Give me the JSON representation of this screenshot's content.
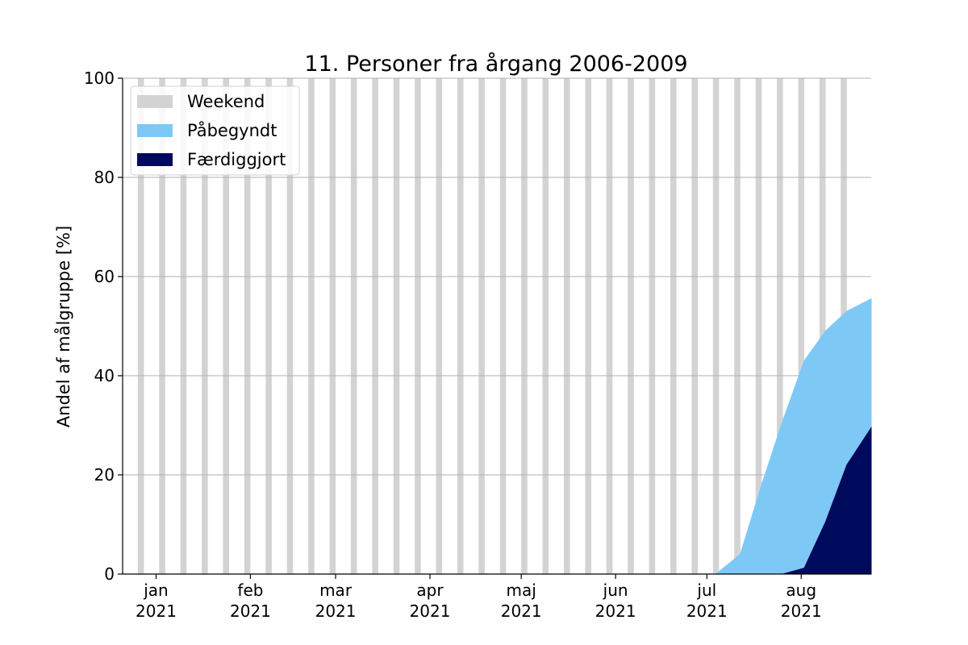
{
  "chart_data": {
    "type": "area",
    "title": "11. Personer fra årgang 2006-2009",
    "ylabel": "Andel af målgruppe [%]",
    "xlabel": "",
    "ylim": [
      0,
      100
    ],
    "xlim": [
      "2020-12-21",
      "2021-08-24"
    ],
    "grid": "horizontal",
    "legend_position": "top-left",
    "y_ticks": [
      0,
      20,
      40,
      60,
      80,
      100
    ],
    "x_ticks": [
      {
        "date": "2021-01-01",
        "label": "jan",
        "year": "2021"
      },
      {
        "date": "2021-02-01",
        "label": "feb",
        "year": "2021"
      },
      {
        "date": "2021-03-01",
        "label": "mar",
        "year": "2021"
      },
      {
        "date": "2021-04-01",
        "label": "apr",
        "year": "2021"
      },
      {
        "date": "2021-05-01",
        "label": "maj",
        "year": "2021"
      },
      {
        "date": "2021-06-01",
        "label": "jun",
        "year": "2021"
      },
      {
        "date": "2021-07-01",
        "label": "jul",
        "year": "2021"
      },
      {
        "date": "2021-08-01",
        "label": "aug",
        "year": "2021"
      }
    ],
    "weekend": {
      "name": "Weekend",
      "color": "#d3d3d3",
      "dates": [
        "2020-12-26",
        "2021-01-02",
        "2021-01-09",
        "2021-01-16",
        "2021-01-23",
        "2021-01-30",
        "2021-02-06",
        "2021-02-13",
        "2021-02-20",
        "2021-02-27",
        "2021-03-06",
        "2021-03-13",
        "2021-03-20",
        "2021-03-27",
        "2021-04-03",
        "2021-04-10",
        "2021-04-17",
        "2021-04-24",
        "2021-05-01",
        "2021-05-08",
        "2021-05-15",
        "2021-05-22",
        "2021-05-29",
        "2021-06-05",
        "2021-06-12",
        "2021-06-19",
        "2021-06-26",
        "2021-07-03",
        "2021-07-10",
        "2021-07-17",
        "2021-07-24",
        "2021-07-31",
        "2021-08-07",
        "2021-08-14"
      ]
    },
    "series": [
      {
        "name": "Påbegyndt",
        "color": "#7ec8f6",
        "x": [
          "2020-12-21",
          "2021-07-04",
          "2021-07-12",
          "2021-07-19",
          "2021-07-26",
          "2021-08-02",
          "2021-08-09",
          "2021-08-16",
          "2021-08-24"
        ],
        "values": [
          0,
          0,
          4,
          18,
          31,
          43,
          49,
          53,
          55.5
        ]
      },
      {
        "name": "Færdiggjort",
        "color": "#000a5c",
        "x": [
          "2020-12-21",
          "2021-07-26",
          "2021-08-02",
          "2021-08-09",
          "2021-08-16",
          "2021-08-24"
        ],
        "values": [
          0,
          0,
          1.2,
          10.5,
          22,
          29.5
        ]
      }
    ]
  }
}
